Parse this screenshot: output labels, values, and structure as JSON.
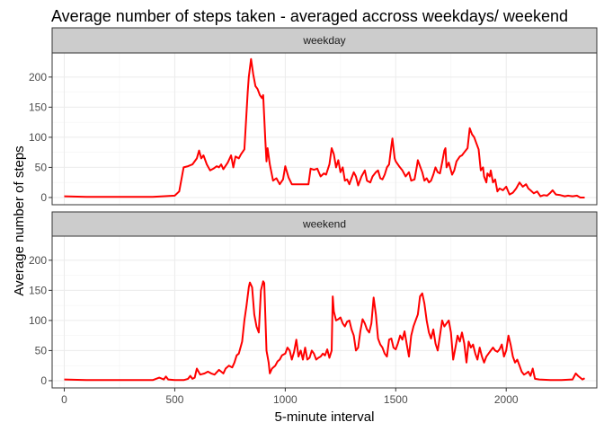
{
  "chart_data": {
    "type": "line",
    "title": "Average number of steps taken - averaged accross weekdays/ weekend",
    "xlabel": "5-minute interval",
    "ylabel": "Average number of steps",
    "xlim": [
      -55,
      2410
    ],
    "ylim": [
      -12,
      240
    ],
    "x_ticks": [
      0,
      500,
      1000,
      1500,
      2000
    ],
    "y_ticks": [
      0,
      50,
      100,
      150,
      200
    ],
    "grid": true,
    "line_color": "#ff0000",
    "panels": [
      {
        "label": "weekday",
        "points": [
          [
            0,
            2
          ],
          [
            100,
            1
          ],
          [
            200,
            1
          ],
          [
            300,
            1
          ],
          [
            400,
            1
          ],
          [
            500,
            3
          ],
          [
            520,
            10
          ],
          [
            540,
            50
          ],
          [
            560,
            52
          ],
          [
            580,
            55
          ],
          [
            600,
            65
          ],
          [
            610,
            78
          ],
          [
            620,
            65
          ],
          [
            630,
            70
          ],
          [
            645,
            55
          ],
          [
            660,
            45
          ],
          [
            675,
            48
          ],
          [
            690,
            52
          ],
          [
            700,
            50
          ],
          [
            710,
            55
          ],
          [
            720,
            47
          ],
          [
            740,
            58
          ],
          [
            755,
            70
          ],
          [
            765,
            50
          ],
          [
            775,
            68
          ],
          [
            790,
            65
          ],
          [
            800,
            72
          ],
          [
            815,
            80
          ],
          [
            830,
            175
          ],
          [
            835,
            200
          ],
          [
            845,
            230
          ],
          [
            855,
            205
          ],
          [
            865,
            185
          ],
          [
            875,
            180
          ],
          [
            885,
            170
          ],
          [
            895,
            165
          ],
          [
            900,
            170
          ],
          [
            910,
            95
          ],
          [
            915,
            60
          ],
          [
            920,
            82
          ],
          [
            930,
            55
          ],
          [
            945,
            28
          ],
          [
            960,
            32
          ],
          [
            975,
            22
          ],
          [
            990,
            30
          ],
          [
            1000,
            52
          ],
          [
            1015,
            33
          ],
          [
            1030,
            22
          ],
          [
            1045,
            22
          ],
          [
            1060,
            22
          ],
          [
            1075,
            22
          ],
          [
            1090,
            22
          ],
          [
            1105,
            22
          ],
          [
            1115,
            48
          ],
          [
            1130,
            46
          ],
          [
            1145,
            48
          ],
          [
            1160,
            35
          ],
          [
            1175,
            40
          ],
          [
            1185,
            38
          ],
          [
            1200,
            55
          ],
          [
            1210,
            82
          ],
          [
            1220,
            72
          ],
          [
            1230,
            50
          ],
          [
            1240,
            62
          ],
          [
            1250,
            42
          ],
          [
            1260,
            50
          ],
          [
            1270,
            28
          ],
          [
            1280,
            30
          ],
          [
            1290,
            22
          ],
          [
            1300,
            32
          ],
          [
            1310,
            42
          ],
          [
            1320,
            35
          ],
          [
            1330,
            20
          ],
          [
            1345,
            35
          ],
          [
            1360,
            45
          ],
          [
            1370,
            28
          ],
          [
            1385,
            25
          ],
          [
            1395,
            35
          ],
          [
            1410,
            42
          ],
          [
            1420,
            45
          ],
          [
            1430,
            32
          ],
          [
            1440,
            30
          ],
          [
            1450,
            38
          ],
          [
            1460,
            50
          ],
          [
            1470,
            55
          ],
          [
            1480,
            85
          ],
          [
            1485,
            98
          ],
          [
            1490,
            82
          ],
          [
            1495,
            65
          ],
          [
            1500,
            60
          ],
          [
            1515,
            52
          ],
          [
            1530,
            45
          ],
          [
            1545,
            35
          ],
          [
            1560,
            42
          ],
          [
            1570,
            28
          ],
          [
            1585,
            30
          ],
          [
            1595,
            50
          ],
          [
            1600,
            62
          ],
          [
            1610,
            52
          ],
          [
            1620,
            42
          ],
          [
            1630,
            28
          ],
          [
            1640,
            32
          ],
          [
            1650,
            25
          ],
          [
            1660,
            28
          ],
          [
            1670,
            38
          ],
          [
            1680,
            50
          ],
          [
            1690,
            42
          ],
          [
            1700,
            40
          ],
          [
            1710,
            58
          ],
          [
            1720,
            78
          ],
          [
            1725,
            82
          ],
          [
            1730,
            50
          ],
          [
            1740,
            58
          ],
          [
            1755,
            38
          ],
          [
            1765,
            45
          ],
          [
            1775,
            60
          ],
          [
            1790,
            68
          ],
          [
            1800,
            70
          ],
          [
            1810,
            75
          ],
          [
            1825,
            82
          ],
          [
            1835,
            115
          ],
          [
            1845,
            105
          ],
          [
            1855,
            100
          ],
          [
            1865,
            90
          ],
          [
            1875,
            80
          ],
          [
            1885,
            45
          ],
          [
            1895,
            50
          ],
          [
            1900,
            35
          ],
          [
            1910,
            25
          ],
          [
            1915,
            40
          ],
          [
            1925,
            35
          ],
          [
            1930,
            45
          ],
          [
            1940,
            25
          ],
          [
            1950,
            30
          ],
          [
            1960,
            10
          ],
          [
            1970,
            15
          ],
          [
            1985,
            12
          ],
          [
            2000,
            18
          ],
          [
            2015,
            5
          ],
          [
            2030,
            8
          ],
          [
            2045,
            15
          ],
          [
            2060,
            25
          ],
          [
            2075,
            18
          ],
          [
            2090,
            22
          ],
          [
            2100,
            15
          ],
          [
            2110,
            12
          ],
          [
            2125,
            7
          ],
          [
            2140,
            10
          ],
          [
            2155,
            2
          ],
          [
            2170,
            4
          ],
          [
            2185,
            3
          ],
          [
            2200,
            8
          ],
          [
            2210,
            12
          ],
          [
            2225,
            5
          ],
          [
            2245,
            4
          ],
          [
            2265,
            2
          ],
          [
            2280,
            3
          ],
          [
            2300,
            2
          ],
          [
            2320,
            3
          ],
          [
            2335,
            0
          ],
          [
            2355,
            0
          ]
        ]
      },
      {
        "label": "weekend",
        "points": [
          [
            0,
            2
          ],
          [
            100,
            1
          ],
          [
            200,
            1
          ],
          [
            300,
            1
          ],
          [
            400,
            1
          ],
          [
            430,
            5
          ],
          [
            450,
            2
          ],
          [
            460,
            7
          ],
          [
            470,
            2
          ],
          [
            500,
            1
          ],
          [
            540,
            1
          ],
          [
            560,
            3
          ],
          [
            570,
            8
          ],
          [
            580,
            3
          ],
          [
            590,
            5
          ],
          [
            600,
            20
          ],
          [
            615,
            10
          ],
          [
            635,
            12
          ],
          [
            650,
            15
          ],
          [
            665,
            12
          ],
          [
            680,
            10
          ],
          [
            700,
            18
          ],
          [
            720,
            12
          ],
          [
            730,
            20
          ],
          [
            745,
            25
          ],
          [
            760,
            22
          ],
          [
            770,
            30
          ],
          [
            780,
            42
          ],
          [
            790,
            45
          ],
          [
            805,
            65
          ],
          [
            815,
            100
          ],
          [
            825,
            125
          ],
          [
            835,
            155
          ],
          [
            840,
            163
          ],
          [
            850,
            155
          ],
          [
            860,
            110
          ],
          [
            870,
            90
          ],
          [
            880,
            80
          ],
          [
            890,
            150
          ],
          [
            900,
            165
          ],
          [
            905,
            162
          ],
          [
            915,
            50
          ],
          [
            925,
            30
          ],
          [
            930,
            12
          ],
          [
            940,
            20
          ],
          [
            955,
            25
          ],
          [
            965,
            32
          ],
          [
            975,
            35
          ],
          [
            985,
            42
          ],
          [
            1000,
            45
          ],
          [
            1010,
            55
          ],
          [
            1020,
            50
          ],
          [
            1030,
            35
          ],
          [
            1040,
            48
          ],
          [
            1050,
            68
          ],
          [
            1060,
            40
          ],
          [
            1070,
            50
          ],
          [
            1080,
            35
          ],
          [
            1090,
            55
          ],
          [
            1100,
            35
          ],
          [
            1110,
            38
          ],
          [
            1120,
            50
          ],
          [
            1130,
            45
          ],
          [
            1140,
            35
          ],
          [
            1150,
            38
          ],
          [
            1160,
            40
          ],
          [
            1170,
            45
          ],
          [
            1180,
            42
          ],
          [
            1190,
            52
          ],
          [
            1200,
            38
          ],
          [
            1210,
            50
          ],
          [
            1215,
            140
          ],
          [
            1220,
            115
          ],
          [
            1230,
            100
          ],
          [
            1240,
            102
          ],
          [
            1250,
            105
          ],
          [
            1260,
            95
          ],
          [
            1270,
            90
          ],
          [
            1280,
            98
          ],
          [
            1290,
            100
          ],
          [
            1300,
            85
          ],
          [
            1310,
            75
          ],
          [
            1320,
            50
          ],
          [
            1330,
            55
          ],
          [
            1340,
            82
          ],
          [
            1350,
            102
          ],
          [
            1360,
            95
          ],
          [
            1370,
            85
          ],
          [
            1380,
            80
          ],
          [
            1390,
            95
          ],
          [
            1400,
            138
          ],
          [
            1410,
            110
          ],
          [
            1420,
            70
          ],
          [
            1430,
            60
          ],
          [
            1440,
            55
          ],
          [
            1450,
            45
          ],
          [
            1460,
            40
          ],
          [
            1470,
            68
          ],
          [
            1480,
            70
          ],
          [
            1490,
            55
          ],
          [
            1500,
            52
          ],
          [
            1510,
            62
          ],
          [
            1520,
            75
          ],
          [
            1530,
            68
          ],
          [
            1540,
            82
          ],
          [
            1550,
            60
          ],
          [
            1560,
            40
          ],
          [
            1570,
            75
          ],
          [
            1580,
            90
          ],
          [
            1590,
            100
          ],
          [
            1600,
            110
          ],
          [
            1610,
            140
          ],
          [
            1620,
            145
          ],
          [
            1630,
            128
          ],
          [
            1640,
            100
          ],
          [
            1650,
            80
          ],
          [
            1660,
            70
          ],
          [
            1670,
            85
          ],
          [
            1680,
            62
          ],
          [
            1690,
            50
          ],
          [
            1700,
            75
          ],
          [
            1710,
            100
          ],
          [
            1720,
            90
          ],
          [
            1730,
            95
          ],
          [
            1740,
            100
          ],
          [
            1750,
            80
          ],
          [
            1760,
            35
          ],
          [
            1770,
            55
          ],
          [
            1780,
            75
          ],
          [
            1790,
            65
          ],
          [
            1800,
            80
          ],
          [
            1810,
            62
          ],
          [
            1820,
            30
          ],
          [
            1830,
            65
          ],
          [
            1840,
            55
          ],
          [
            1850,
            60
          ],
          [
            1860,
            45
          ],
          [
            1870,
            35
          ],
          [
            1880,
            55
          ],
          [
            1890,
            40
          ],
          [
            1900,
            30
          ],
          [
            1910,
            40
          ],
          [
            1920,
            45
          ],
          [
            1930,
            50
          ],
          [
            1940,
            55
          ],
          [
            1950,
            50
          ],
          [
            1960,
            48
          ],
          [
            1970,
            52
          ],
          [
            1980,
            60
          ],
          [
            1990,
            40
          ],
          [
            2000,
            50
          ],
          [
            2010,
            75
          ],
          [
            2020,
            60
          ],
          [
            2030,
            40
          ],
          [
            2040,
            30
          ],
          [
            2050,
            35
          ],
          [
            2060,
            25
          ],
          [
            2070,
            15
          ],
          [
            2080,
            10
          ],
          [
            2090,
            12
          ],
          [
            2100,
            15
          ],
          [
            2110,
            8
          ],
          [
            2120,
            20
          ],
          [
            2130,
            3
          ],
          [
            2150,
            2
          ],
          [
            2200,
            1
          ],
          [
            2250,
            1
          ],
          [
            2300,
            2
          ],
          [
            2315,
            12
          ],
          [
            2325,
            8
          ],
          [
            2335,
            5
          ],
          [
            2345,
            2
          ],
          [
            2355,
            4
          ]
        ]
      }
    ]
  }
}
